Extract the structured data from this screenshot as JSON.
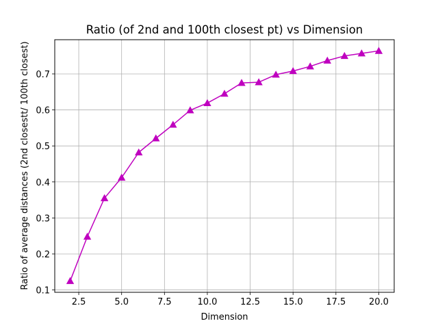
{
  "chart_data": {
    "type": "line",
    "title": "Ratio (of 2nd and 100th closest pt) vs Dimension",
    "xlabel": "Dimension",
    "ylabel": "Ratio of average distances (2nd closestt/ 100th closest)",
    "xlim": [
      1.1,
      20.9
    ],
    "ylim": [
      0.0935,
      0.795
    ],
    "x_ticks": [
      2.5,
      5.0,
      7.5,
      10.0,
      12.5,
      15.0,
      17.5,
      20.0
    ],
    "x_tick_labels": [
      "2.5",
      "5.0",
      "7.5",
      "10.0",
      "12.5",
      "15.0",
      "17.5",
      "20.0"
    ],
    "y_ticks": [
      0.1,
      0.2,
      0.3,
      0.4,
      0.5,
      0.6,
      0.7
    ],
    "y_tick_labels": [
      "0.1",
      "0.2",
      "0.3",
      "0.4",
      "0.5",
      "0.6",
      "0.7"
    ],
    "grid": true,
    "series": [
      {
        "color": "#bf00bf",
        "marker": "triangle-up",
        "x": [
          2,
          3,
          4,
          5,
          6,
          7,
          8,
          9,
          10,
          11,
          12,
          13,
          14,
          15,
          16,
          17,
          18,
          19,
          20
        ],
        "y": [
          0.125,
          0.248,
          0.355,
          0.412,
          0.482,
          0.521,
          0.559,
          0.599,
          0.619,
          0.645,
          0.675,
          0.677,
          0.698,
          0.708,
          0.721,
          0.737,
          0.75,
          0.757,
          0.764
        ]
      }
    ]
  }
}
